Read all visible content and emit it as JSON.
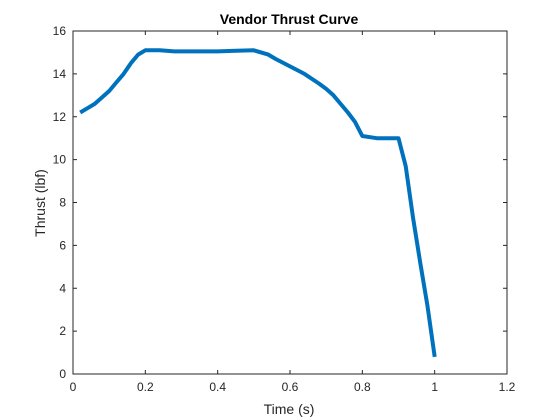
{
  "chart_data": {
    "type": "line",
    "title": "Vendor Thrust Curve",
    "xlabel": "Time (s)",
    "ylabel": "Thrust (lbf)",
    "xlim": [
      0,
      1.2
    ],
    "ylim": [
      0,
      16
    ],
    "xticks": [
      0,
      0.2,
      0.4,
      0.6,
      0.8,
      1,
      1.2
    ],
    "xtick_labels": [
      "0",
      "0.2",
      "0.4",
      "0.6",
      "0.8",
      "1",
      "1.2"
    ],
    "yticks": [
      0,
      2,
      4,
      6,
      8,
      10,
      12,
      14,
      16
    ],
    "ytick_labels": [
      "0",
      "2",
      "4",
      "6",
      "8",
      "10",
      "12",
      "14",
      "16"
    ],
    "grid": false,
    "box": true,
    "series": [
      {
        "color": "#0072bd",
        "x": [
          0.02,
          0.04,
          0.06,
          0.08,
          0.1,
          0.12,
          0.14,
          0.16,
          0.18,
          0.2,
          0.24,
          0.28,
          0.32,
          0.36,
          0.4,
          0.44,
          0.5,
          0.54,
          0.56,
          0.6,
          0.64,
          0.68,
          0.7,
          0.72,
          0.74,
          0.76,
          0.78,
          0.8,
          0.84,
          0.88,
          0.9,
          0.92,
          0.94,
          0.96,
          0.98,
          1.0
        ],
        "y": [
          12.2,
          12.4,
          12.6,
          12.9,
          13.2,
          13.6,
          14.0,
          14.5,
          14.9,
          15.1,
          15.1,
          15.05,
          15.05,
          15.05,
          15.05,
          15.07,
          15.1,
          14.9,
          14.7,
          14.35,
          14.0,
          13.55,
          13.3,
          13.0,
          12.6,
          12.2,
          11.75,
          11.1,
          11.0,
          11.0,
          11.0,
          9.7,
          7.3,
          5.2,
          3.2,
          0.8
        ]
      }
    ]
  }
}
